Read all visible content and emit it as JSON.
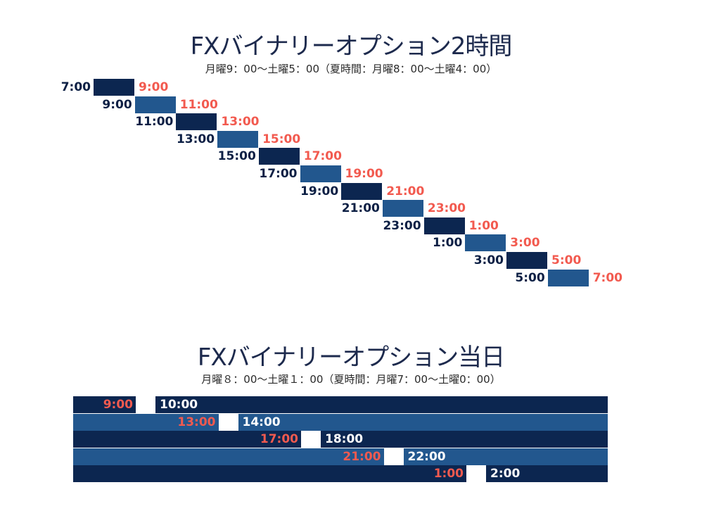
{
  "section1": {
    "title": "FXバイナリーオプション2時間",
    "subtitle": "月曜9：00～土曜5：00（夏時間：月曜8：00～土曜4：00）",
    "steps": [
      {
        "start": "7:00",
        "end": "9:00"
      },
      {
        "start": "9:00",
        "end": "11:00"
      },
      {
        "start": "11:00",
        "end": "13:00"
      },
      {
        "start": "13:00",
        "end": "15:00"
      },
      {
        "start": "15:00",
        "end": "17:00"
      },
      {
        "start": "17:00",
        "end": "19:00"
      },
      {
        "start": "19:00",
        "end": "21:00"
      },
      {
        "start": "21:00",
        "end": "23:00"
      },
      {
        "start": "23:00",
        "end": "1:00"
      },
      {
        "start": "1:00",
        "end": "3:00"
      },
      {
        "start": "3:00",
        "end": "5:00"
      },
      {
        "start": "5:00",
        "end": "7:00"
      }
    ]
  },
  "section2": {
    "title": "FXバイナリーオプション当日",
    "subtitle": "月曜８：00～土曜１：00（夏時間：月曜7：00～土曜0：00）",
    "rows": [
      {
        "end": "9:00",
        "start": "10:00"
      },
      {
        "end": "13:00",
        "start": "14:00"
      },
      {
        "end": "17:00",
        "start": "18:00"
      },
      {
        "end": "21:00",
        "start": "22:00"
      },
      {
        "end": "1:00",
        "start": "2:00"
      }
    ]
  },
  "colors": {
    "dark": "#0c2650",
    "mid": "#22578e",
    "accent": "#f25a4f",
    "label": "#0c1f44"
  }
}
